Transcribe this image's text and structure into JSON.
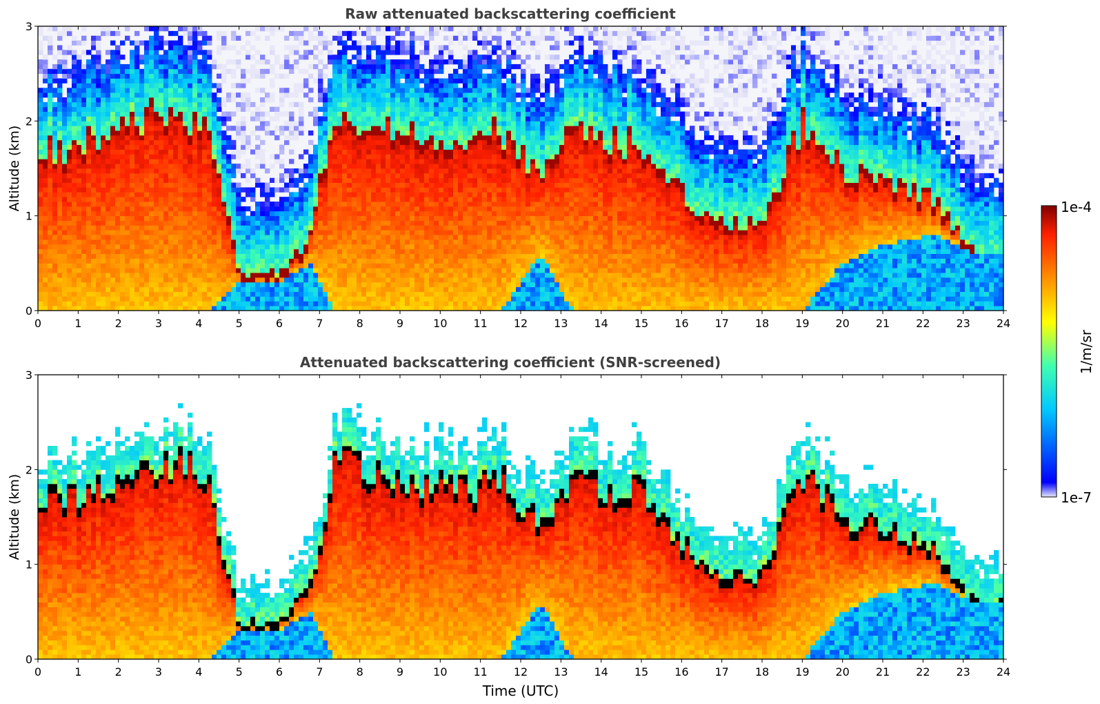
{
  "chart_data": [
    {
      "type": "heatmap",
      "title": "Raw attenuated backscattering coefficient",
      "xlabel": "",
      "ylabel": "Altitude (km)",
      "xlim": [
        0,
        24
      ],
      "ylim": [
        0,
        3
      ],
      "x_ticks": [
        "0",
        "1",
        "2",
        "3",
        "4",
        "5",
        "6",
        "7",
        "8",
        "9",
        "10",
        "11",
        "12",
        "13",
        "14",
        "15",
        "16",
        "17",
        "18",
        "19",
        "20",
        "21",
        "22",
        "23",
        "24"
      ],
      "y_ticks": [
        "0",
        "1",
        "2",
        "3"
      ],
      "screened": false,
      "profile_time_utc": [
        0.5,
        1.5,
        2.9,
        3.6,
        4.3,
        5.0,
        5.5,
        6.0,
        6.8,
        7.4,
        8.3,
        9.0,
        10.8,
        11.5,
        12.5,
        13.3,
        14.2,
        14.9,
        16.1,
        17.0,
        18.0,
        19.0,
        20.0,
        21.0,
        22.3,
        23.3
      ],
      "cloud_base_km": [
        0.0,
        0.0,
        0.0,
        0.0,
        0.0,
        0.3,
        0.3,
        0.3,
        0.5,
        0.0,
        0.0,
        0.0,
        0.0,
        0.0,
        0.6,
        0.0,
        0.0,
        0.0,
        0.0,
        0.0,
        0.0,
        0.0,
        0.5,
        0.7,
        0.8,
        0.6
      ],
      "cloud_top_km": [
        1.7,
        1.8,
        2.1,
        2.1,
        1.8,
        0.4,
        0.4,
        0.4,
        0.8,
        2.2,
        1.9,
        1.9,
        1.8,
        1.9,
        1.4,
        2.0,
        1.8,
        1.8,
        1.2,
        0.9,
        0.9,
        2.0,
        1.5,
        1.4,
        1.2,
        0.6
      ]
    },
    {
      "type": "heatmap",
      "title": "Attenuated backscattering coefficient (SNR-screened)",
      "xlabel": "Time (UTC)",
      "ylabel": "Altitude (km)",
      "xlim": [
        0,
        24
      ],
      "ylim": [
        0,
        3
      ],
      "x_ticks": [
        "0",
        "1",
        "2",
        "3",
        "4",
        "5",
        "6",
        "7",
        "8",
        "9",
        "10",
        "11",
        "12",
        "13",
        "14",
        "15",
        "16",
        "17",
        "18",
        "19",
        "20",
        "21",
        "22",
        "23",
        "24"
      ],
      "y_ticks": [
        "0",
        "1",
        "2",
        "3"
      ],
      "screened": true,
      "profile_time_utc": [
        0.5,
        1.5,
        2.9,
        3.6,
        4.3,
        5.0,
        5.5,
        6.0,
        6.8,
        7.4,
        8.3,
        9.0,
        10.8,
        11.5,
        12.5,
        13.3,
        14.2,
        14.9,
        16.1,
        17.0,
        18.0,
        19.0,
        20.0,
        21.0,
        22.3,
        23.3
      ],
      "cloud_base_km": [
        0.0,
        0.0,
        0.0,
        0.0,
        0.0,
        0.3,
        0.3,
        0.3,
        0.5,
        0.0,
        0.0,
        0.0,
        0.0,
        0.0,
        0.6,
        0.0,
        0.0,
        0.0,
        0.0,
        0.0,
        0.0,
        0.0,
        0.5,
        0.7,
        0.8,
        0.6
      ],
      "cloud_top_km": [
        1.7,
        1.8,
        2.1,
        2.1,
        1.8,
        0.4,
        0.4,
        0.4,
        0.8,
        2.2,
        1.9,
        1.9,
        1.8,
        1.9,
        1.4,
        2.0,
        1.8,
        1.8,
        1.2,
        0.9,
        0.9,
        2.0,
        1.5,
        1.4,
        1.2,
        0.6
      ]
    }
  ],
  "colorbar": {
    "label": "1/m/sr",
    "min_label": "1e-7",
    "max_label": "1e-4",
    "colormap": "jet",
    "scale": "log",
    "colors": [
      "#e8e8f8",
      "#0000ff",
      "#00c8ff",
      "#40ffb0",
      "#ffff00",
      "#ff9000",
      "#ff2000",
      "#800000"
    ]
  }
}
